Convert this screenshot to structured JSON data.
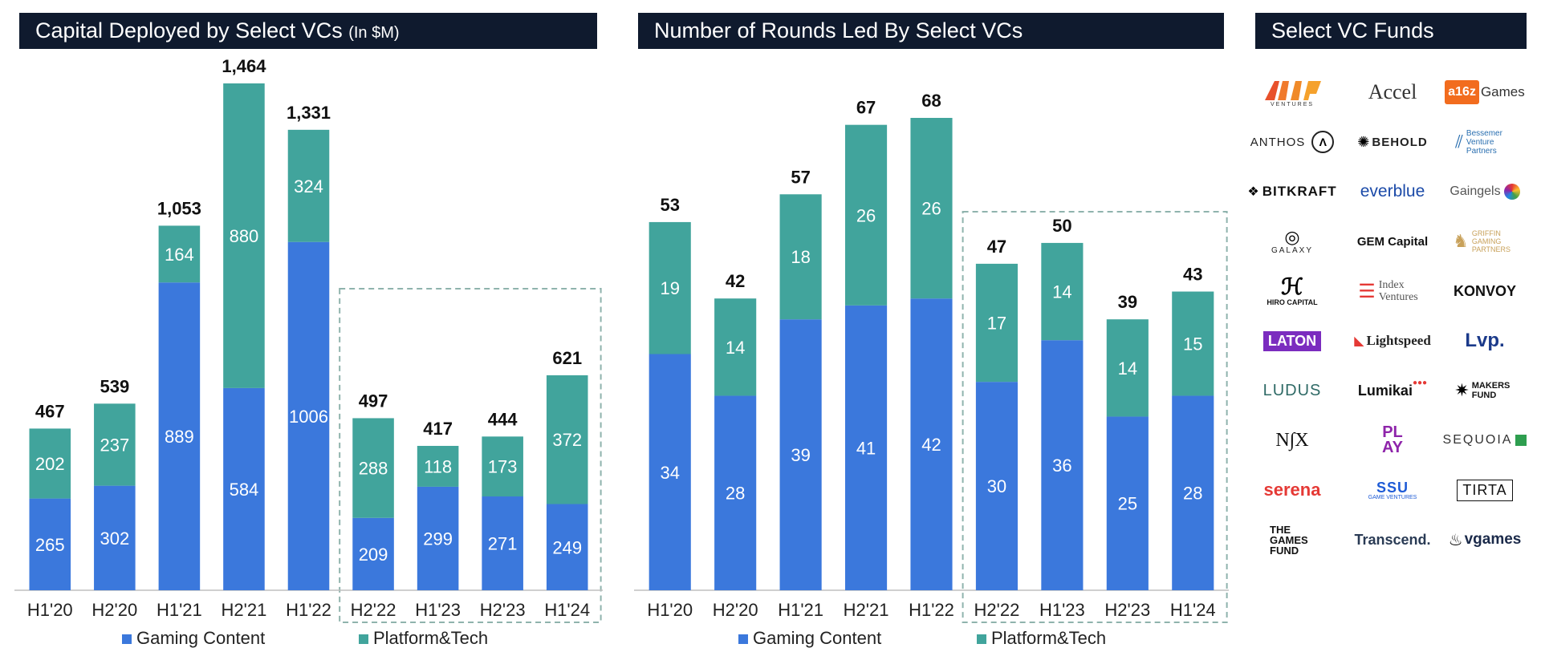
{
  "panels": {
    "capital_title": "Capital Deployed by Select VCs",
    "capital_unit": "(In $M)",
    "rounds_title": "Number of Rounds Led By Select VCs",
    "funds_title": "Select VC Funds"
  },
  "colors": {
    "gaming": "#3b78dc",
    "platform": "#41a49c",
    "title_bg": "#0f1a2e",
    "dashed_box": "#8fb3ad"
  },
  "chart_data": [
    {
      "type": "bar",
      "stacked": true,
      "title": "Capital Deployed by Select VCs (In $M)",
      "categories": [
        "H1'20",
        "H2'20",
        "H1'21",
        "H2'21",
        "H1'22",
        "H2'22",
        "H1'23",
        "H2'23",
        "H1'24"
      ],
      "series": [
        {
          "name": "Gaming Content",
          "values": [
            265,
            302,
            889,
            584,
            1006,
            209,
            299,
            271,
            249
          ]
        },
        {
          "name": "Platform&Tech",
          "values": [
            202,
            237,
            164,
            880,
            324,
            288,
            118,
            173,
            372
          ]
        }
      ],
      "totals": [
        "467",
        "539",
        "1,053",
        "1,464",
        "1,331",
        "497",
        "417",
        "444",
        "621"
      ],
      "ylim": [
        0,
        1464
      ],
      "legend": "bottom",
      "highlight": [
        5,
        8
      ]
    },
    {
      "type": "bar",
      "stacked": true,
      "title": "Number of Rounds Led By Select VCs",
      "categories": [
        "H1'20",
        "H2'20",
        "H1'21",
        "H2'21",
        "H1'22",
        "H2'22",
        "H1'23",
        "H2'23",
        "H1'24"
      ],
      "series": [
        {
          "name": "Gaming Content",
          "values": [
            34,
            28,
            39,
            41,
            42,
            30,
            36,
            25,
            28
          ]
        },
        {
          "name": "Platform&Tech",
          "values": [
            19,
            14,
            18,
            26,
            26,
            17,
            14,
            14,
            15
          ]
        }
      ],
      "totals": [
        "53",
        "42",
        "57",
        "67",
        "68",
        "47",
        "50",
        "39",
        "43"
      ],
      "ylim": [
        0,
        68
      ],
      "legend": "bottom",
      "highlight": [
        5,
        8
      ]
    }
  ],
  "funds": [
    "VENTURES",
    "Accel",
    "Games",
    "ANTHOS",
    "BEHOLD",
    "Bessemer Venture Partners",
    "BITKRAFT",
    "everblue",
    "Gaingels",
    "GALAXY",
    "GEM Capital",
    "GRIFFIN GAMING PARTNERS",
    "HIRO CAPITAL",
    "Index Ventures",
    "KONVOY",
    "LATON",
    "Lightspeed",
    "Lvp.",
    "LUDUS",
    "Lumikai",
    "MAKERS FUND",
    "N∫X",
    "PL AY",
    "SEQUOIA",
    "serena",
    "GAME VENTURES",
    "TIRTA",
    "THE GAMES FUND",
    "Transcend.",
    "vgames"
  ]
}
